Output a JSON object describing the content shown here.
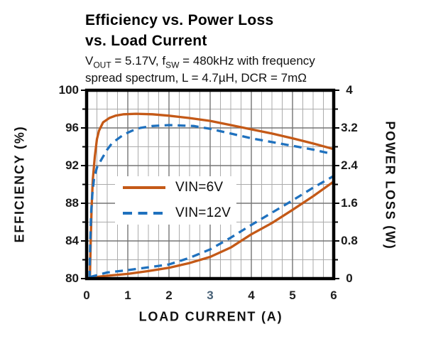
{
  "chart_data": {
    "type": "line",
    "title": "Efficiency vs. Power Loss vs. Load Current",
    "title_lines": [
      "Efficiency vs. Power Loss",
      "vs. Load Current"
    ],
    "subtitle": "VOUT = 5.17V, fSW = 480kHz with frequency spread spectrum, L = 4.7µH, DCR = 7mΩ",
    "subtitle_parts": {
      "v": "V",
      "v_sub": "OUT",
      "mid": " = 5.17V, f",
      "f_sub": "SW",
      "tail": " = 480kHz with frequency",
      "line2": "spread spectrum, L = 4.7µH, DCR = 7mΩ"
    },
    "xlabel": "LOAD CURRENT (A)",
    "ylabel_left": "EFFICIENCY (%)",
    "ylabel_right": "POWER LOSS (W)",
    "xlim": [
      0,
      6
    ],
    "ylim_left": [
      80,
      100
    ],
    "ylim_right": [
      0,
      4
    ],
    "x_ticks": [
      "0",
      "1",
      "2",
      "3",
      "4",
      "5",
      "6"
    ],
    "x_tick_colors": [
      "#1f1f1f",
      "#1f1f1f",
      "#1f1f1f",
      "#476076",
      "#1f1f1f",
      "#1f1f1f",
      "#1f1f1f"
    ],
    "y_ticks_left": [
      "100",
      "96",
      "92",
      "88",
      "84",
      "80"
    ],
    "y_ticks_right": [
      "4",
      "3.2",
      "2.4",
      "1.6",
      "0.8",
      "0"
    ],
    "x_minor_step": 0.25,
    "y_minor_step_left": 2,
    "grid": true,
    "colors": {
      "vin6": "#C45917",
      "vin12": "#1F71BE",
      "grid_minor": "#ABABAB",
      "grid_major": "#757575",
      "frame": "#000000"
    },
    "legend": {
      "position": "inside-middle-left",
      "entries": [
        {
          "label": "VIN=6V",
          "color": "#C45917",
          "style": "solid"
        },
        {
          "label": "VIN=12V",
          "color": "#1F71BE",
          "style": "dashed"
        }
      ]
    },
    "series": [
      {
        "name": "efficiency-vin6v",
        "legend": "VIN=6V",
        "axis": "left",
        "color": "#C45917",
        "style": "solid",
        "points": [
          [
            0.08,
            80
          ],
          [
            0.1,
            84
          ],
          [
            0.12,
            87.5
          ],
          [
            0.15,
            90.5
          ],
          [
            0.2,
            93
          ],
          [
            0.25,
            94.8
          ],
          [
            0.3,
            95.7
          ],
          [
            0.4,
            96.6
          ],
          [
            0.55,
            97.05
          ],
          [
            0.7,
            97.3
          ],
          [
            0.9,
            97.45
          ],
          [
            1.2,
            97.5
          ],
          [
            1.6,
            97.45
          ],
          [
            2,
            97.3
          ],
          [
            2.5,
            97.05
          ],
          [
            3,
            96.75
          ],
          [
            3.5,
            96.3
          ],
          [
            4,
            95.85
          ],
          [
            4.5,
            95.4
          ],
          [
            5,
            94.9
          ],
          [
            5.5,
            94.35
          ],
          [
            6,
            93.75
          ]
        ]
      },
      {
        "name": "efficiency-vin12v",
        "legend": "VIN=12V",
        "axis": "left",
        "color": "#1F71BE",
        "style": "dashed",
        "points": [
          [
            0.07,
            80
          ],
          [
            0.09,
            84
          ],
          [
            0.11,
            87
          ],
          [
            0.14,
            89
          ],
          [
            0.18,
            90.6
          ],
          [
            0.25,
            91.8
          ],
          [
            0.38,
            92.8
          ],
          [
            0.5,
            93.7
          ],
          [
            0.62,
            94.4
          ],
          [
            0.9,
            95.3
          ],
          [
            1.1,
            95.7
          ],
          [
            1.3,
            96
          ],
          [
            1.6,
            96.2
          ],
          [
            2,
            96.3
          ],
          [
            2.6,
            96.2
          ],
          [
            3,
            95.9
          ],
          [
            3.5,
            95.4
          ],
          [
            4,
            94.9
          ],
          [
            4.5,
            94.5
          ],
          [
            5,
            94.1
          ],
          [
            5.5,
            93.7
          ],
          [
            6,
            93.2
          ]
        ]
      },
      {
        "name": "power-loss-vin6v",
        "legend": "VIN=6V",
        "axis": "right",
        "color": "#C45917",
        "style": "solid",
        "points": [
          [
            0.08,
            0.02
          ],
          [
            0.5,
            0.06
          ],
          [
            1,
            0.1
          ],
          [
            1.5,
            0.16
          ],
          [
            2,
            0.23
          ],
          [
            2.5,
            0.33
          ],
          [
            3,
            0.46
          ],
          [
            3.5,
            0.66
          ],
          [
            4,
            0.94
          ],
          [
            4.5,
            1.18
          ],
          [
            5,
            1.46
          ],
          [
            5.5,
            1.75
          ],
          [
            6,
            2.06
          ]
        ]
      },
      {
        "name": "power-loss-vin12v",
        "legend": "VIN=12V",
        "axis": "right",
        "color": "#1F71BE",
        "style": "dashed",
        "points": [
          [
            0.07,
            0.03
          ],
          [
            0.5,
            0.13
          ],
          [
            1,
            0.18
          ],
          [
            1.5,
            0.24
          ],
          [
            2,
            0.3
          ],
          [
            2.5,
            0.44
          ],
          [
            3,
            0.62
          ],
          [
            3.5,
            0.87
          ],
          [
            4,
            1.14
          ],
          [
            4.5,
            1.4
          ],
          [
            5,
            1.66
          ],
          [
            5.5,
            1.93
          ],
          [
            6,
            2.18
          ]
        ]
      }
    ]
  }
}
